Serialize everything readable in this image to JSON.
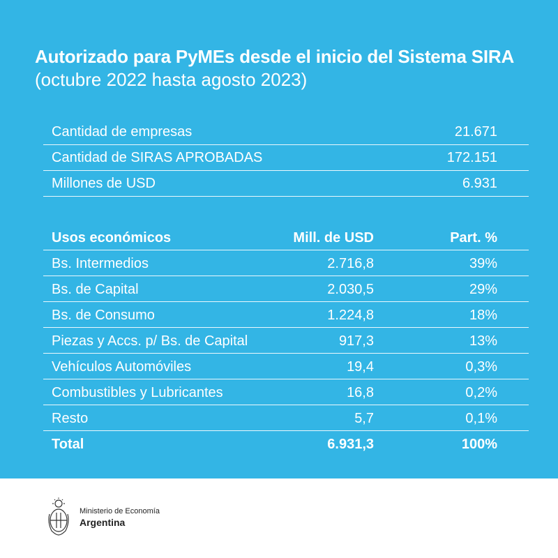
{
  "header": {
    "title": "Autorizado para PyMEs desde el inicio del Sistema SIRA",
    "subtitle": "(octubre 2022 hasta agosto 2023)"
  },
  "summary": [
    {
      "label": "Cantidad de empresas",
      "value": "21.671"
    },
    {
      "label": "Cantidad de SIRAS APROBADAS",
      "value": "172.151"
    },
    {
      "label": "Millones de USD",
      "value": "6.931"
    }
  ],
  "uses_table": {
    "headers": [
      "Usos económicos",
      "Mill. de USD",
      "Part. %"
    ],
    "rows": [
      [
        "Bs. Intermedios",
        "2.716,8",
        "39%"
      ],
      [
        "Bs. de Capital",
        "2.030,5",
        "29%"
      ],
      [
        "Bs. de Consumo",
        "1.224,8",
        "18%"
      ],
      [
        "Piezas y Accs. p/ Bs. de Capital",
        "917,3",
        "13%"
      ],
      [
        "Vehículos Automóviles",
        "19,4",
        "0,3%"
      ],
      [
        "Combustibles y Lubricantes",
        "16,8",
        "0,2%"
      ],
      [
        "Resto",
        "5,7",
        "0,1%"
      ]
    ],
    "total": [
      "Total",
      "6.931,3",
      "100%"
    ]
  },
  "footer": {
    "ministry": "Ministerio de Economía",
    "country": "Argentina",
    "crest_icon": "national-coat-of-arms-icon"
  },
  "colors": {
    "background": "#33b5e5",
    "text": "#ffffff"
  }
}
